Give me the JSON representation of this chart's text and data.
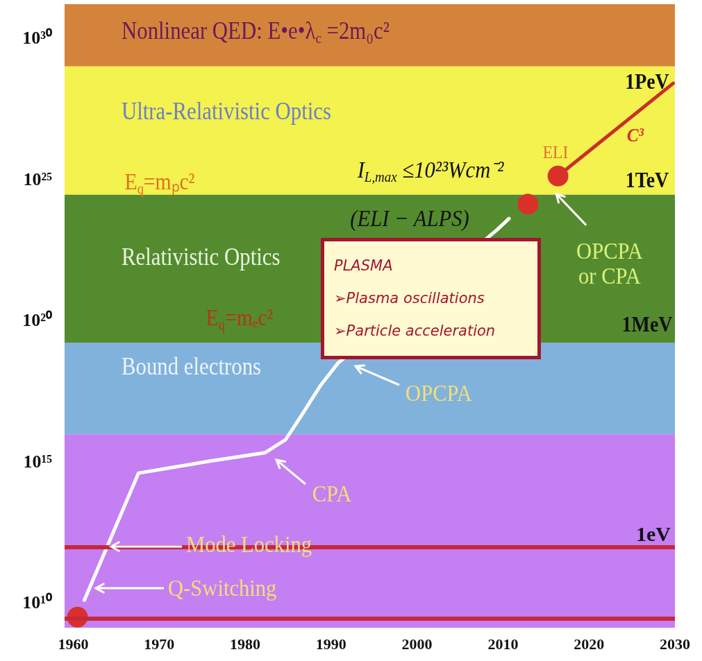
{
  "chart_data": {
    "type": "line",
    "log": "y",
    "grid": false,
    "xlim": [
      1959,
      2030
    ],
    "xticks": [
      1960,
      1970,
      1980,
      1990,
      2000,
      2010,
      2020,
      2030
    ],
    "ylim": [
      1260000000.0,
      1.6e+31
    ],
    "yticks": [
      {
        "value": 10000000000.0,
        "label": "10¹⁰"
      },
      {
        "value": 1000000000000000.0,
        "label": "10¹⁵"
      },
      {
        "value": 1e+20,
        "label": "10²⁰"
      },
      {
        "value": 1e+25,
        "label": "10²⁵"
      },
      {
        "value": 1e+30,
        "label": "10³⁰"
      }
    ],
    "bands": [
      {
        "axis": "y",
        "from": 1e+29,
        "to": 1.6e+31,
        "label": "Nonlinear QED: E•e•λ$_{c}$ =2m₀c²",
        "color": "#d4843a"
      },
      {
        "axis": "y",
        "from": 2.8e+24,
        "to": 1e+29,
        "label": "Ultra-Relativistic Optics",
        "color": "#f4f24e"
      },
      {
        "axis": "y",
        "from": 1.6e+19,
        "to": 2.8e+24,
        "label": "Relativistic Optics",
        "color": "#558b2f"
      },
      {
        "axis": "y",
        "from": 9000000000000000.0,
        "to": 1.6e+19,
        "label": "Bound electrons",
        "color": "#80b2dc"
      },
      {
        "axis": "y",
        "from": 1260000000.0,
        "to": 9000000000000000.0,
        "color": "#c47ff2"
      }
    ],
    "ref_lines": [
      {
        "axis": "y",
        "value": 900000000000.0,
        "label": "1eV",
        "color": "#c8283a"
      },
      {
        "axis": "y",
        "value": 2600000000.0,
        "color": "#c8283a"
      }
    ],
    "series": [
      {
        "marker": "none",
        "color": "#ffffff",
        "x": [
          1961.3,
          1967.6,
          1975.8,
          1982.3,
          1984.7,
          1986.3,
          1988.8,
          1990.8,
          2009.3,
          2010.7
        ],
        "values": [
          12000000000.0,
          380000000000000.0,
          1000000000000000.0,
          2000000000000000.0,
          5800000000000000.0,
          3.2e+16,
          5e+17,
          3e+18,
          1.6e+23,
          4e+23
        ]
      },
      {
        "marker": "none",
        "color": "#c8302a",
        "x": [
          2016.4,
          2029.8
        ],
        "values": [
          1.3e+25,
          2.5e+28
        ]
      },
      {
        "type": "scatter",
        "marker": "circle",
        "color": "#d9302a",
        "x": [
          1960.5,
          2012.9,
          2016.4
        ],
        "values": [
          3000000000.0,
          1.3e+24,
          1.3e+25
        ]
      }
    ],
    "annotations": [
      "CPA",
      "OPCPA",
      "Mode Locking",
      "Q-Switching",
      {
        "text": "OPCPA\nor CPA",
        "x": 2016.2,
        "y": 3e+24
      },
      "ELI",
      "C³",
      "1PeV",
      "1TeV",
      "1MeV",
      "E$_{q}$=mₚc²",
      "E$_{q}$=mₑc²",
      "I$_{L,max}$ ≤10²³Wcm⁻²",
      "(ELI − ALPS)",
      "PLASMA",
      "➢Plasma oscillations",
      "➢Particle acceleration"
    ]
  }
}
